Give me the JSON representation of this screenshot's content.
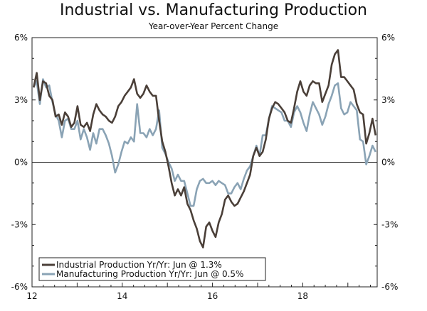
{
  "title": "Industrial vs. Manufacturing Production",
  "subtitle": "Year-over-Year Percent Change",
  "chart_data": {
    "type": "line",
    "title": "Industrial vs. Manufacturing Production",
    "subtitle": "Year-over-Year Percent Change",
    "xlabel": "",
    "ylabel": "",
    "xlim": [
      2012.0,
      2019.65
    ],
    "ylim": [
      -6,
      6
    ],
    "x_ticks": [
      {
        "value": 2012,
        "label": "12"
      },
      {
        "value": 2014,
        "label": "14"
      },
      {
        "value": 2016,
        "label": "16"
      },
      {
        "value": 2018,
        "label": "18"
      }
    ],
    "y_ticks": [
      {
        "value": 6,
        "label": "6%"
      },
      {
        "value": 3,
        "label": "3%"
      },
      {
        "value": 0,
        "label": "0%"
      },
      {
        "value": -3,
        "label": "-3%"
      },
      {
        "value": -6,
        "label": "-6%"
      }
    ],
    "legend_position": "bottom-left",
    "series": [
      {
        "name": "Industrial Production Yr/Yr: Jun @ 1.3%",
        "color": "#4a3f38",
        "values": [
          3.6,
          4.3,
          3.0,
          3.9,
          3.8,
          3.2,
          3.0,
          2.2,
          2.3,
          1.8,
          2.4,
          2.2,
          1.7,
          1.9,
          2.7,
          1.8,
          1.7,
          1.9,
          1.5,
          2.3,
          2.8,
          2.5,
          2.3,
          2.2,
          2.0,
          1.9,
          2.2,
          2.7,
          2.9,
          3.2,
          3.4,
          3.6,
          4.0,
          3.3,
          3.1,
          3.3,
          3.7,
          3.4,
          3.2,
          3.2,
          2.0,
          1.0,
          0.5,
          -0.2,
          -1.0,
          -1.6,
          -1.3,
          -1.6,
          -1.2,
          -2.0,
          -2.3,
          -2.8,
          -3.2,
          -3.8,
          -4.1,
          -3.1,
          -2.9,
          -3.3,
          -3.6,
          -2.9,
          -2.5,
          -1.8,
          -1.6,
          -1.9,
          -2.1,
          -2.0,
          -1.7,
          -1.4,
          -1.0,
          -0.6,
          0.3,
          0.7,
          0.3,
          0.5,
          1.1,
          2.1,
          2.6,
          2.9,
          2.8,
          2.6,
          2.4,
          2.0,
          1.9,
          2.6,
          3.4,
          3.9,
          3.4,
          3.2,
          3.7,
          3.9,
          3.8,
          3.8,
          2.9,
          3.3,
          3.7,
          4.7,
          5.2,
          5.4,
          4.1,
          4.1,
          3.9,
          3.7,
          3.5,
          2.8,
          2.4,
          2.3,
          0.9,
          1.4,
          2.1,
          1.3
        ]
      },
      {
        "name": "Manufacturing Production Yr/Yr: Jun @ 0.5%",
        "color": "#8aa3b5",
        "values": [
          3.6,
          3.9,
          2.8,
          4.0,
          3.6,
          3.7,
          2.9,
          2.3,
          2.0,
          1.2,
          2.0,
          2.1,
          1.6,
          1.6,
          2.0,
          1.1,
          1.6,
          1.2,
          0.6,
          1.4,
          0.9,
          1.6,
          1.6,
          1.3,
          0.9,
          0.3,
          -0.5,
          -0.1,
          0.5,
          1.0,
          0.9,
          1.2,
          1.0,
          2.8,
          1.4,
          1.4,
          1.2,
          1.6,
          1.3,
          1.6,
          2.5,
          0.7,
          0.4,
          0.0,
          -0.3,
          -0.9,
          -0.6,
          -0.9,
          -0.9,
          -1.5,
          -2.1,
          -2.1,
          -1.3,
          -0.9,
          -0.8,
          -1.0,
          -1.0,
          -0.9,
          -1.1,
          -0.9,
          -1.0,
          -1.1,
          -1.5,
          -1.5,
          -1.2,
          -1.0,
          -1.3,
          -0.8,
          -0.4,
          -0.2,
          0.3,
          0.8,
          0.3,
          1.3,
          1.3,
          2.1,
          2.7,
          2.6,
          2.5,
          2.4,
          2.0,
          2.0,
          1.7,
          2.4,
          2.7,
          2.4,
          1.9,
          1.5,
          2.3,
          2.9,
          2.6,
          2.3,
          1.8,
          2.2,
          2.8,
          3.2,
          3.7,
          3.8,
          2.6,
          2.3,
          2.4,
          2.9,
          2.7,
          2.5,
          1.1,
          1.0,
          -0.1,
          0.3,
          0.8,
          0.5
        ]
      }
    ]
  }
}
